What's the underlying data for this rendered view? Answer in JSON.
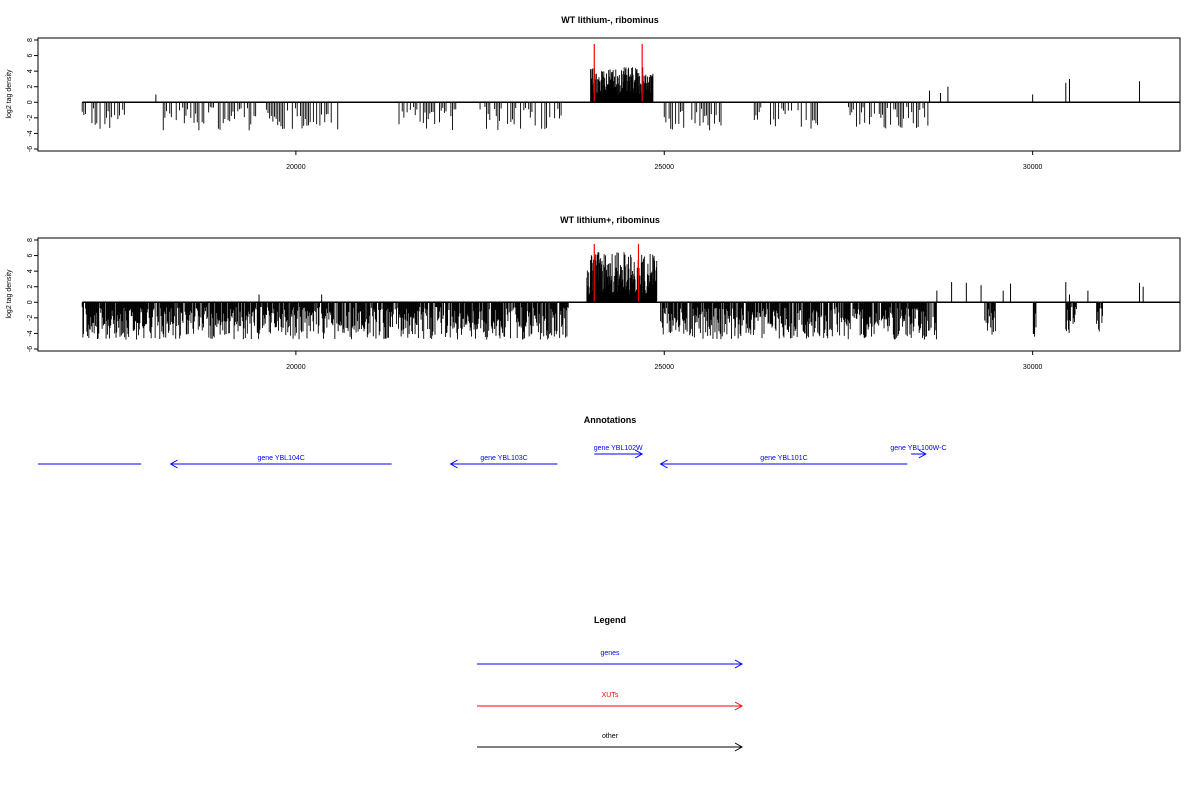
{
  "chart_data": [
    {
      "type": "bar",
      "title": "WT lithium-, ribominus",
      "xlabel": "",
      "ylabel": "log2 tag density",
      "xlim": [
        16500,
        32000
      ],
      "ylim": [
        -6,
        8
      ],
      "xticks": [
        "20000",
        "25000",
        "30000"
      ],
      "yticks": [
        "-6",
        "-4",
        "-2",
        "0",
        "2",
        "4",
        "6",
        "8"
      ],
      "region_from": 17100,
      "region_to": 32000,
      "neg_segments": [
        [
          17100,
          17700
        ],
        [
          18200,
          19500
        ],
        [
          19600,
          20600
        ],
        [
          21400,
          22200
        ],
        [
          22500,
          23600
        ],
        [
          25000,
          25800
        ],
        [
          26200,
          27100
        ],
        [
          27500,
          28600
        ]
      ],
      "pos_segments": [
        [
          24000,
          24850
        ]
      ],
      "isolated_peaks": [
        [
          18100,
          1
        ],
        [
          28600,
          1.5
        ],
        [
          28750,
          1.2
        ],
        [
          28850,
          2
        ],
        [
          30000,
          1
        ],
        [
          30450,
          2.5
        ],
        [
          30500,
          3
        ],
        [
          31450,
          2.7
        ]
      ],
      "red_peaks": [
        [
          24050,
          7.5
        ],
        [
          24700,
          7.5
        ]
      ]
    },
    {
      "type": "bar",
      "title": "WT lithium+, ribominus",
      "xlabel": "",
      "ylabel": "log2 tag density",
      "xlim": [
        16500,
        32000
      ],
      "ylim": [
        -6,
        8
      ],
      "xticks": [
        "20000",
        "25000",
        "30000"
      ],
      "yticks": [
        "-6",
        "-4",
        "-2",
        "0",
        "2",
        "4",
        "6",
        "8"
      ],
      "region_from": 17100,
      "region_to": 32000,
      "neg_segments": [
        [
          17100,
          23700
        ],
        [
          24950,
          28700
        ],
        [
          29350,
          29500
        ],
        [
          30000,
          30050
        ],
        [
          30450,
          30600
        ],
        [
          30850,
          30950
        ]
      ],
      "pos_segments": [
        [
          23950,
          24900
        ]
      ],
      "isolated_peaks": [
        [
          19500,
          1
        ],
        [
          20350,
          1
        ],
        [
          28700,
          1.5
        ],
        [
          28900,
          2.6
        ],
        [
          29100,
          2.5
        ],
        [
          29300,
          2.2
        ],
        [
          29600,
          1.5
        ],
        [
          29700,
          2.4
        ],
        [
          30450,
          2.6
        ],
        [
          30500,
          1
        ],
        [
          30750,
          1.5
        ],
        [
          31450,
          2.5
        ],
        [
          31500,
          2
        ]
      ],
      "red_peaks": [
        [
          24050,
          7.5
        ],
        [
          24650,
          7.5
        ]
      ]
    }
  ],
  "annotations": {
    "title": "Annotations",
    "genes": [
      {
        "label": "",
        "from": 16500,
        "to": 17900,
        "direction": "none",
        "color": "#0000ff"
      },
      {
        "label": "gene YBL104C",
        "from": 18300,
        "to": 21300,
        "direction": "left",
        "color": "#0000ff"
      },
      {
        "label": "gene YBL103C",
        "from": 22100,
        "to": 23550,
        "direction": "left",
        "color": "#0000ff"
      },
      {
        "label": "gene YBL102W",
        "from": 24050,
        "to": 24700,
        "direction": "right",
        "color": "#0000ff"
      },
      {
        "label": "gene YBL101C",
        "from": 24950,
        "to": 28300,
        "direction": "left",
        "color": "#0000ff"
      },
      {
        "label": "gene YBL100W-C",
        "from": 28350,
        "to": 28550,
        "direction": "right",
        "color": "#0000ff"
      }
    ]
  },
  "legend": {
    "title": "Legend",
    "items": [
      {
        "label": "genes",
        "color": "#0000ff"
      },
      {
        "label": "XUTs",
        "color": "#ff0000"
      },
      {
        "label": "other",
        "color": "#000000"
      }
    ]
  }
}
